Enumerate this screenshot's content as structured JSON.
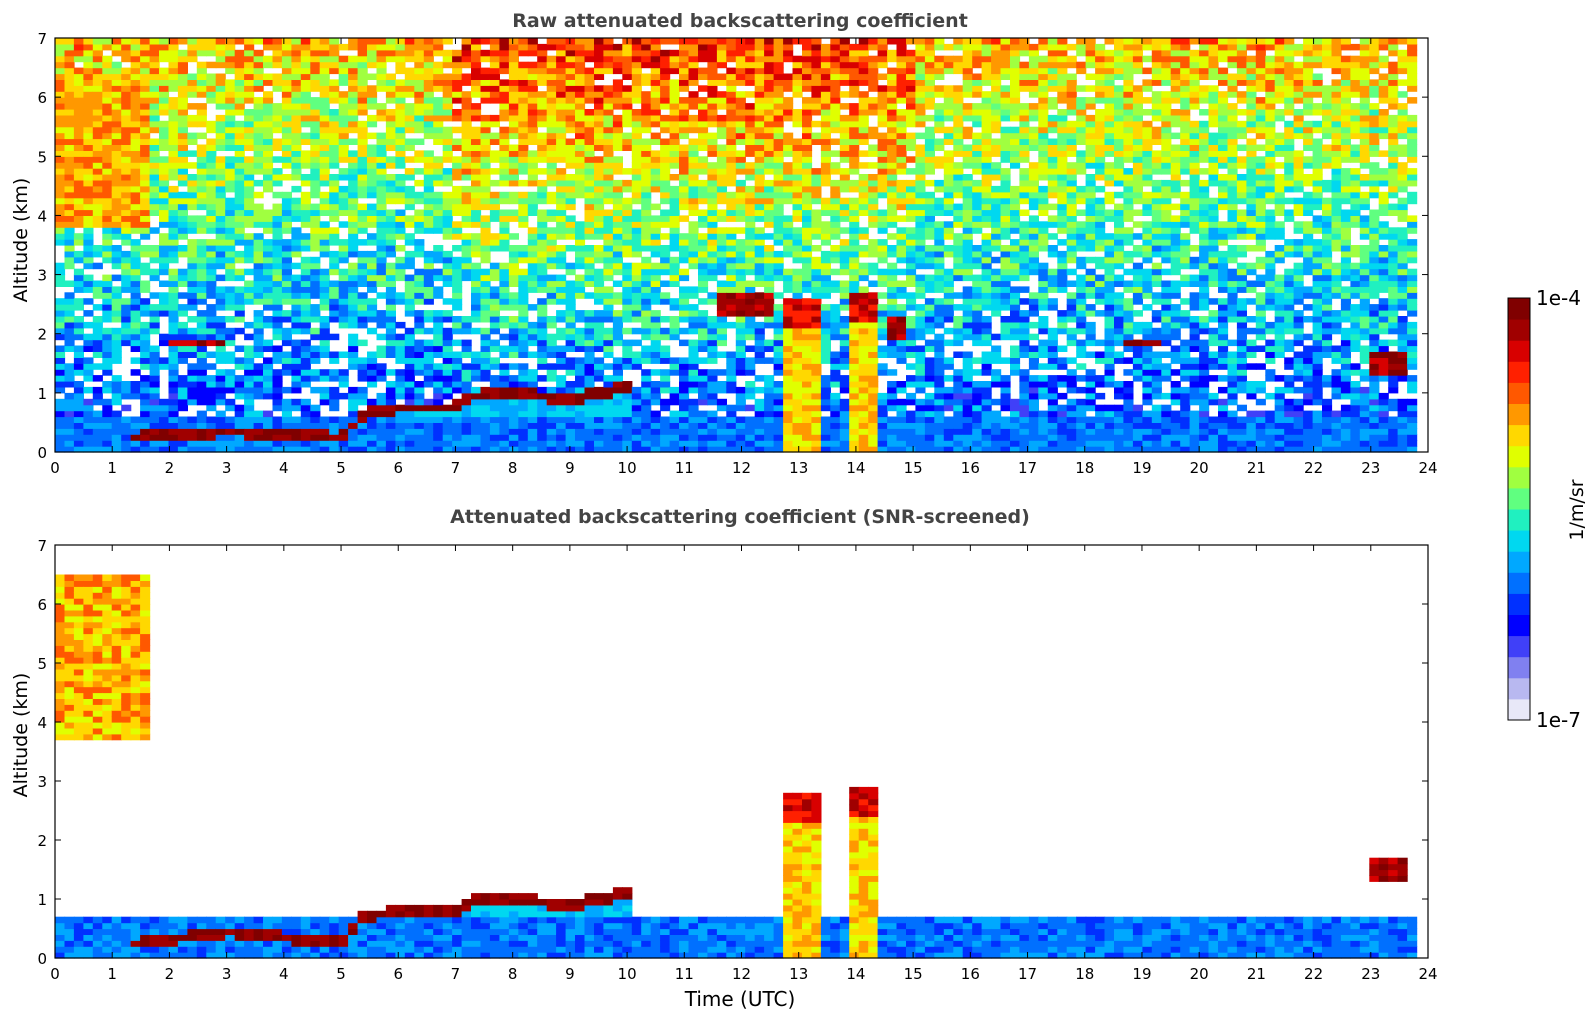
{
  "chart_data": [
    {
      "type": "heatmap",
      "title": "Raw attenuated backscattering coefficient",
      "xlabel": "",
      "ylabel": "Altitude (km)",
      "xlim": [
        0,
        24
      ],
      "ylim": [
        0,
        7
      ],
      "x_ticks": [
        0,
        1,
        2,
        3,
        4,
        5,
        6,
        7,
        8,
        9,
        10,
        11,
        12,
        13,
        14,
        15,
        16,
        17,
        18,
        19,
        20,
        21,
        22,
        23,
        24
      ],
      "y_ticks": [
        0,
        1,
        2,
        3,
        4,
        5,
        6,
        7
      ],
      "colorscale": "log",
      "features": [
        {
          "kind": "boundary-layer",
          "x": [
            0,
            23.8
          ],
          "y": [
            0,
            0.6
          ]
        },
        {
          "kind": "aerosol-layer-top",
          "points": [
            [
              1.4,
              0.25
            ],
            [
              3,
              0.35
            ],
            [
              4,
              0.32
            ],
            [
              5,
              0.25
            ],
            [
              5.4,
              0.65
            ],
            [
              6,
              0.75
            ],
            [
              7,
              0.75
            ],
            [
              7.3,
              0.95
            ],
            [
              8,
              1.0
            ],
            [
              9,
              0.9
            ],
            [
              10,
              1.1
            ]
          ]
        },
        {
          "kind": "cloud-column",
          "x": [
            12.7,
            13.4
          ],
          "y": [
            0,
            2.6
          ]
        },
        {
          "kind": "cloud-column",
          "x": [
            13.9,
            14.3
          ],
          "y": [
            0,
            2.7
          ]
        },
        {
          "kind": "elevated-cloud",
          "x": [
            11.6,
            12.5
          ],
          "y": [
            2.3,
            2.7
          ]
        },
        {
          "kind": "elevated-cloud",
          "x": [
            14.5,
            14.8
          ],
          "y": [
            1.9,
            2.3
          ]
        },
        {
          "kind": "cirrus",
          "x": [
            0,
            1.7
          ],
          "y": [
            3.8,
            6.4
          ]
        },
        {
          "kind": "elevated-cloud",
          "x": [
            22.9,
            23.6
          ],
          "y": [
            1.3,
            1.75
          ]
        },
        {
          "kind": "thin-layer",
          "x": [
            18.7,
            19.4
          ],
          "y": [
            1.85,
            1.95
          ]
        },
        {
          "kind": "thin-layer",
          "x": [
            2.0,
            3.0
          ],
          "y": [
            1.8,
            1.9
          ]
        }
      ]
    },
    {
      "type": "heatmap",
      "title": "Attenuated backscattering coefficient (SNR-screened)",
      "xlabel": "Time (UTC)",
      "ylabel": "Altitude (km)",
      "xlim": [
        0,
        24
      ],
      "ylim": [
        0,
        7
      ],
      "x_ticks": [
        0,
        1,
        2,
        3,
        4,
        5,
        6,
        7,
        8,
        9,
        10,
        11,
        12,
        13,
        14,
        15,
        16,
        17,
        18,
        19,
        20,
        21,
        22,
        23,
        24
      ],
      "y_ticks": [
        0,
        1,
        2,
        3,
        4,
        5,
        6,
        7
      ],
      "colorscale": "log",
      "features": [
        {
          "kind": "boundary-layer",
          "x": [
            0,
            23.8
          ],
          "y": [
            0,
            0.7
          ]
        },
        {
          "kind": "aerosol-layer-top",
          "points": [
            [
              1.4,
              0.25
            ],
            [
              3,
              0.45
            ],
            [
              4,
              0.35
            ],
            [
              5,
              0.25
            ],
            [
              5.4,
              0.7
            ],
            [
              6,
              0.8
            ],
            [
              7,
              0.8
            ],
            [
              7.3,
              1.0
            ],
            [
              8,
              1.0
            ],
            [
              9,
              0.9
            ],
            [
              10,
              1.1
            ]
          ]
        },
        {
          "kind": "cloud-column",
          "x": [
            12.7,
            13.4
          ],
          "y": [
            0,
            2.8
          ]
        },
        {
          "kind": "cloud-column",
          "x": [
            13.9,
            14.3
          ],
          "y": [
            0,
            2.9
          ]
        },
        {
          "kind": "cirrus",
          "x": [
            0,
            1.7
          ],
          "y": [
            3.7,
            6.5
          ]
        },
        {
          "kind": "elevated-cloud",
          "x": [
            22.9,
            23.6
          ],
          "y": [
            1.3,
            1.75
          ]
        }
      ]
    }
  ],
  "colorbar": {
    "max_label": "1e-4",
    "min_label": "1e-7",
    "unit_label": "1/m/sr",
    "colors": [
      "#e8e8f8",
      "#b8b8f0",
      "#8080f0",
      "#4040f8",
      "#0000ff",
      "#0030ff",
      "#0070ff",
      "#00a8ff",
      "#00d8f0",
      "#20f0c0",
      "#60ff80",
      "#a0ff40",
      "#e0ff00",
      "#ffd800",
      "#ff9800",
      "#ff5800",
      "#ff2000",
      "#d80000",
      "#a00000",
      "#800000"
    ]
  }
}
